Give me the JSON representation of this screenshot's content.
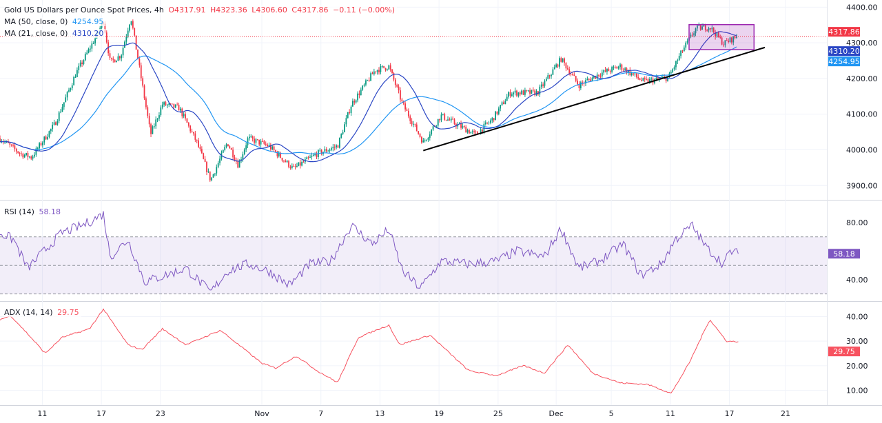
{
  "header": {
    "title": "Gold US Dollars per Ounce Spot Prices, 4h",
    "open": "O4317.91",
    "high": "H4323.36",
    "low": "L4306.60",
    "close": "C4317.86",
    "change": "−0.11 (−0.00%)"
  },
  "indicators": {
    "ma50": {
      "label": "MA (50, close, 0)",
      "value": "4254.95",
      "color": "#2196f3"
    },
    "ma21": {
      "label": "MA (21, close, 0)",
      "value": "4310.20",
      "color": "#2a46c4"
    },
    "rsi": {
      "label": "RSI (14)",
      "value": "58.18",
      "color": "#7e57c2"
    },
    "adx": {
      "label": "ADX (14, 14)",
      "value": "29.75",
      "color": "#f7525f"
    }
  },
  "colors": {
    "up": "#089981",
    "down": "#f23645",
    "last": "#f23645"
  },
  "chart_data": [
    {
      "type": "candlestick",
      "title": "Gold US Dollars per Ounce Spot Prices, 4h",
      "ylim": [
        3860,
        4420
      ],
      "y_ticks": [
        "3900.00",
        "4000.00",
        "4100.00",
        "4200.00",
        "4300.00",
        "4400.00"
      ],
      "price_labels": {
        "last": "4317.86",
        "ma21": "4310.20",
        "ma50": "4254.95"
      },
      "x_ticks": [
        {
          "t": 0,
          "label": "11"
        },
        {
          "t": 6,
          "label": "17"
        },
        {
          "t": 12,
          "label": "23"
        },
        {
          "t": 22.3,
          "label": "Nov"
        },
        {
          "t": 28.3,
          "label": "7"
        },
        {
          "t": 34.3,
          "label": "13"
        },
        {
          "t": 40.3,
          "label": "19"
        },
        {
          "t": 46.3,
          "label": "25"
        },
        {
          "t": 52.2,
          "label": "Dec"
        },
        {
          "t": 57.8,
          "label": "5"
        },
        {
          "t": 63.8,
          "label": "11"
        },
        {
          "t": 69.8,
          "label": "17"
        },
        {
          "t": 75.5,
          "label": "21"
        }
      ],
      "xlim": [
        -4.3,
        79.7
      ],
      "close_path": [
        [
          -4.3,
          4032
        ],
        [
          -2.2,
          3989
        ],
        [
          -1.1,
          3979
        ],
        [
          1.3,
          4074
        ],
        [
          3.4,
          4213
        ],
        [
          5.5,
          4319
        ],
        [
          6.2,
          4362
        ],
        [
          6.9,
          4245
        ],
        [
          8.0,
          4266
        ],
        [
          9.0,
          4372
        ],
        [
          10.1,
          4191
        ],
        [
          11.0,
          4043
        ],
        [
          12.2,
          4128
        ],
        [
          13.9,
          4117
        ],
        [
          15.7,
          4021
        ],
        [
          17.1,
          3915
        ],
        [
          18.8,
          4021
        ],
        [
          19.9,
          3957
        ],
        [
          20.9,
          4032
        ],
        [
          23.0,
          4011
        ],
        [
          25.5,
          3947
        ],
        [
          27.9,
          3989
        ],
        [
          30.0,
          4011
        ],
        [
          31.4,
          4128
        ],
        [
          33.8,
          4223
        ],
        [
          35.2,
          4234
        ],
        [
          36.6,
          4128
        ],
        [
          38.7,
          4021
        ],
        [
          40.5,
          4096
        ],
        [
          41.9,
          4074
        ],
        [
          44.0,
          4043
        ],
        [
          45.7,
          4085
        ],
        [
          47.5,
          4160
        ],
        [
          50.3,
          4160
        ],
        [
          52.7,
          4255
        ],
        [
          54.5,
          4181
        ],
        [
          56.6,
          4213
        ],
        [
          58.7,
          4234
        ],
        [
          61.1,
          4191
        ],
        [
          63.6,
          4202
        ],
        [
          65.0,
          4277
        ],
        [
          66.4,
          4340
        ],
        [
          67.8,
          4345
        ],
        [
          69.2,
          4298
        ],
        [
          70.6,
          4317.86
        ]
      ],
      "trendline": [
        [
          38.7,
          3998
        ],
        [
          73.4,
          4287
        ]
      ],
      "range_box": {
        "t": [
          65.7,
          72.3
        ],
        "price": [
          4281,
          4351
        ]
      }
    },
    {
      "type": "line",
      "name": "RSI (14)",
      "ylim": [
        25,
        95
      ],
      "y_ticks": [
        "40.00",
        "80.00"
      ],
      "bands": [
        30,
        50,
        70
      ],
      "last_label": "58.18",
      "points": [
        [
          -4.3,
          72.7
        ],
        [
          -2.9,
          68
        ],
        [
          -1.5,
          48
        ],
        [
          -0.1,
          58
        ],
        [
          2.0,
          73
        ],
        [
          4.1,
          78
        ],
        [
          6.2,
          86
        ],
        [
          6.9,
          56
        ],
        [
          8.7,
          68
        ],
        [
          10.4,
          38.5
        ],
        [
          12.5,
          43
        ],
        [
          14.6,
          48
        ],
        [
          17.1,
          31
        ],
        [
          18.8,
          46
        ],
        [
          20.9,
          51
        ],
        [
          23.0,
          46
        ],
        [
          25.1,
          36
        ],
        [
          27.2,
          51
        ],
        [
          29.3,
          53
        ],
        [
          31.4,
          78
        ],
        [
          33.5,
          65
        ],
        [
          35.2,
          75
        ],
        [
          36.6,
          46
        ],
        [
          38.4,
          34
        ],
        [
          40.5,
          53
        ],
        [
          43.3,
          51
        ],
        [
          46.1,
          53
        ],
        [
          48.2,
          60
        ],
        [
          51.0,
          56
        ],
        [
          52.7,
          76
        ],
        [
          54.5,
          48
        ],
        [
          56.6,
          53
        ],
        [
          59.0,
          65
        ],
        [
          60.8,
          43
        ],
        [
          62.9,
          51
        ],
        [
          64.3,
          68
        ],
        [
          66.0,
          78
        ],
        [
          67.4,
          63
        ],
        [
          69.2,
          51
        ],
        [
          69.9,
          60
        ],
        [
          70.7,
          58.18
        ]
      ]
    },
    {
      "type": "line",
      "name": "ADX (14, 14)",
      "ylim": [
        4,
        46
      ],
      "y_ticks": [
        "10.00",
        "20.00",
        "30.00",
        "40.00"
      ],
      "last_label": "29.75",
      "points": [
        [
          -4.3,
          38.8
        ],
        [
          -3.2,
          40.3
        ],
        [
          -1.5,
          33
        ],
        [
          0.3,
          25
        ],
        [
          2.0,
          31.5
        ],
        [
          4.8,
          35
        ],
        [
          6.2,
          43
        ],
        [
          8.7,
          28.5
        ],
        [
          10.1,
          26.5
        ],
        [
          12.2,
          35
        ],
        [
          14.6,
          28.5
        ],
        [
          18.1,
          34.4
        ],
        [
          22.3,
          21
        ],
        [
          23.7,
          19
        ],
        [
          25.8,
          24
        ],
        [
          27.9,
          18
        ],
        [
          30.0,
          13.2
        ],
        [
          32.1,
          31.5
        ],
        [
          35.2,
          36.5
        ],
        [
          36.3,
          28.5
        ],
        [
          39.4,
          32.4
        ],
        [
          43.3,
          18
        ],
        [
          46.1,
          16
        ],
        [
          48.9,
          20
        ],
        [
          51.0,
          17
        ],
        [
          53.4,
          28.5
        ],
        [
          55.9,
          17
        ],
        [
          58.7,
          13
        ],
        [
          61.5,
          12.4
        ],
        [
          63.9,
          8.8
        ],
        [
          65.7,
          21
        ],
        [
          67.8,
          38.8
        ],
        [
          69.5,
          30
        ],
        [
          70.7,
          29.75
        ]
      ]
    }
  ]
}
